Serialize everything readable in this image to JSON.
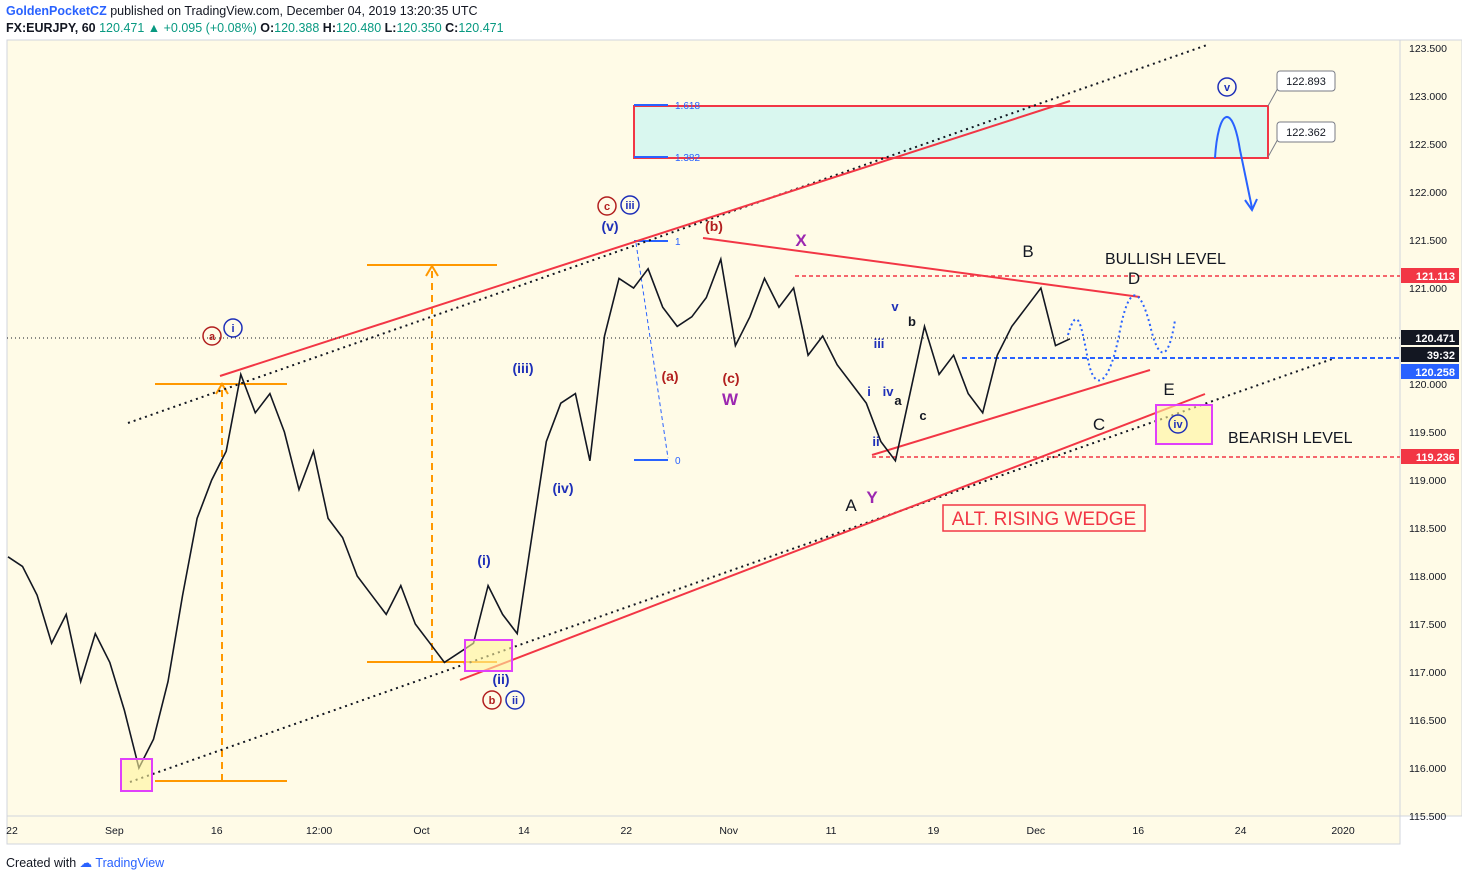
{
  "header": {
    "author": "GoldenPocketCZ",
    "published": "published on TradingView.com, December 04, 2019 13:20:35 UTC",
    "symbol": "FX:EURJPY, 60",
    "last": "120.471",
    "change": "▲ +0.095 (+0.08%)",
    "o_label": "O:",
    "o": "120.388",
    "h_label": "H:",
    "h": "120.480",
    "l_label": "L:",
    "l": "120.350",
    "c_label": "C:",
    "c": "120.471"
  },
  "footer": {
    "created_with": "Created with",
    "brand": "TradingView"
  },
  "chart_data": {
    "type": "line",
    "symbol": "FX:EURJPY, 60",
    "ylim": [
      115.5,
      123.5
    ],
    "y_ticks": [
      "123.500",
      "123.000",
      "122.500",
      "122.000",
      "121.500",
      "121.000",
      "120.500",
      "120.000",
      "119.500",
      "119.000",
      "118.500",
      "118.000",
      "117.500",
      "117.000",
      "116.500",
      "116.000",
      "115.500"
    ],
    "x_ticks": [
      "22",
      "Sep",
      "16",
      "12:00",
      "Oct",
      "14",
      "22",
      "Nov",
      "11",
      "19",
      "Dec",
      "16",
      "24",
      "2020"
    ],
    "series": [
      {
        "values": [
          118.2,
          118.1,
          117.8,
          117.3,
          117.6,
          116.9,
          117.4,
          117.1,
          116.6,
          116.0,
          116.3,
          116.9,
          117.8,
          118.6,
          119.0,
          119.3,
          120.1,
          119.7,
          119.9,
          119.5,
          118.9,
          119.3,
          118.6,
          118.4,
          118.0,
          117.8,
          117.6,
          117.9,
          117.5,
          117.3,
          117.1,
          117.2,
          117.3,
          117.9,
          117.6,
          117.4,
          118.4,
          119.4,
          119.8,
          119.9,
          119.2,
          120.5,
          121.1,
          121.0,
          121.2,
          120.8,
          120.6,
          120.7,
          120.9,
          121.3,
          120.4,
          120.7,
          121.1,
          120.8,
          121.0,
          120.3,
          120.5,
          120.2,
          120.0,
          119.8,
          119.4,
          119.2,
          119.9,
          120.6,
          120.1,
          120.3,
          119.9,
          119.7,
          120.3,
          120.6,
          120.8,
          121.0,
          120.4,
          120.471
        ]
      }
    ],
    "price_labels": [
      {
        "value": "121.113",
        "color": "#f23645"
      },
      {
        "value": "120.471",
        "color": "#131722"
      },
      {
        "value": "39:32",
        "color": "#131722"
      },
      {
        "value": "120.258",
        "color": "#2962ff"
      },
      {
        "value": "119.236",
        "color": "#f23645"
      }
    ],
    "callouts": [
      "122.893",
      "122.362"
    ],
    "fib": [
      "1.618",
      "1.382",
      "1",
      "0"
    ],
    "texts": {
      "bullish": "BULLISH LEVEL",
      "bearish": "BEARISH LEVEL",
      "wedge": "ALT. RISING WEDGE"
    },
    "wave_labels": [
      {
        "t": "(v)",
        "c": "#1e2fb8"
      },
      {
        "t": "(iii)",
        "c": "#1e2fb8"
      },
      {
        "t": "(iv)",
        "c": "#1e2fb8"
      },
      {
        "t": "(i)",
        "c": "#1e2fb8"
      },
      {
        "t": "(ii)",
        "c": "#1e2fb8"
      },
      {
        "t": "(b)",
        "c": "#b21f1f"
      },
      {
        "t": "(a)",
        "c": "#b21f1f"
      },
      {
        "t": "(c)",
        "c": "#b21f1f"
      },
      {
        "t": "X",
        "c": "#9c27b0"
      },
      {
        "t": "W",
        "c": "#9c27b0"
      },
      {
        "t": "Y",
        "c": "#9c27b0"
      },
      {
        "t": "A",
        "c": "#131722"
      },
      {
        "t": "B",
        "c": "#131722"
      },
      {
        "t": "C",
        "c": "#131722"
      },
      {
        "t": "D",
        "c": "#131722"
      },
      {
        "t": "E",
        "c": "#131722"
      },
      {
        "t": "i",
        "c": "#1e2fb8"
      },
      {
        "t": "ii",
        "c": "#1e2fb8"
      },
      {
        "t": "iii",
        "c": "#1e2fb8"
      },
      {
        "t": "iv",
        "c": "#1e2fb8"
      },
      {
        "t": "v",
        "c": "#1e2fb8"
      },
      {
        "t": "a",
        "c": "#131722"
      },
      {
        "t": "b",
        "c": "#131722"
      },
      {
        "t": "c",
        "c": "#131722"
      }
    ],
    "circled": [
      {
        "t": "a",
        "c": "#b21f1f"
      },
      {
        "t": "i",
        "c": "#1e2fb8"
      },
      {
        "t": "c",
        "c": "#b21f1f"
      },
      {
        "t": "iii",
        "c": "#1e2fb8"
      },
      {
        "t": "b",
        "c": "#b21f1f"
      },
      {
        "t": "ii",
        "c": "#1e2fb8"
      },
      {
        "t": "v",
        "c": "#1e2fb8"
      },
      {
        "t": "iv",
        "c": "#1e2fb8"
      }
    ],
    "grid": false
  },
  "colors": {
    "background": "#fffbe7",
    "price_line": "#131722",
    "trend_red": "#f23645",
    "target_zone": "#d9f7ef",
    "orange": "#ff9800",
    "blue": "#2962ff",
    "magenta": "#e040fb"
  }
}
